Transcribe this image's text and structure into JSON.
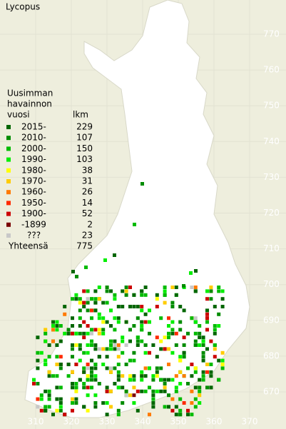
{
  "title": "Lycopus",
  "legend": {
    "heading": [
      "Uusimman",
      "havainnon",
      "vuosi"
    ],
    "count_heading": "lkm",
    "rows": [
      {
        "label": "2015-",
        "count": 229,
        "color": "#006600"
      },
      {
        "label": "2010-",
        "count": 107,
        "color": "#008c00"
      },
      {
        "label": "2000-",
        "count": 150,
        "color": "#00bb00"
      },
      {
        "label": "1990-",
        "count": 103,
        "color": "#00ee00"
      },
      {
        "label": "1980-",
        "count": 38,
        "color": "#ffff00"
      },
      {
        "label": "1970-",
        "count": 31,
        "color": "#ffcc00"
      },
      {
        "label": "1960-",
        "count": 26,
        "color": "#ff7a00"
      },
      {
        "label": "1950-",
        "count": 14,
        "color": "#ff2a00"
      },
      {
        "label": "1900-",
        "count": 52,
        "color": "#cc0000"
      },
      {
        "label": "-1899",
        "count": 2,
        "color": "#7a0000"
      },
      {
        "label": "???",
        "count": 23,
        "color": "#c8c8c8"
      }
    ],
    "total_label": "Yhteensä",
    "total": 775
  },
  "map": {
    "yticks": [
      770,
      760,
      750,
      740,
      730,
      720,
      710,
      700,
      690,
      680,
      670
    ],
    "xticks": [
      310,
      320,
      330,
      340,
      350,
      360,
      370
    ]
  }
}
